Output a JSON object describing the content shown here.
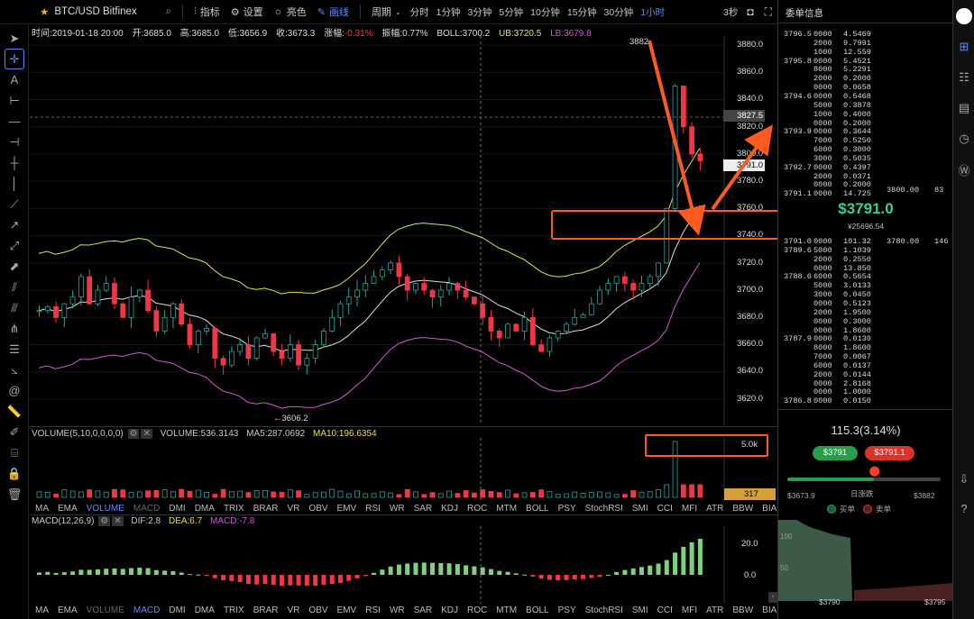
{
  "topbar": {
    "symbol": "BTC/USD Bitfinex",
    "indicators": "指标",
    "settings": "设置",
    "light": "亮色",
    "draw": "画线",
    "period_label": "周期",
    "periods": [
      "分时",
      "1分钟",
      "3分钟",
      "5分钟",
      "10分钟",
      "15分钟",
      "30分钟",
      "1小时"
    ],
    "active_period": "1小时",
    "refresh": "3秒"
  },
  "infobar": {
    "time": "时间:2019-01-18 20:00",
    "open": "开:3685.0",
    "high": "高:3685.0",
    "low": "低:3656.9",
    "close": "收:3673.3",
    "change_label": "涨幅:",
    "change": "-0.31%",
    "amp": "振幅:0.77%",
    "boll": "BOLL:3700.2",
    "ub": "UB:3720.5",
    "lb": "LB:3679.8"
  },
  "price_axis": {
    "ticks": [
      "3880.0",
      "3860.0",
      "3840.0",
      "3820.0",
      "3800.0",
      "3780.0",
      "3760.0",
      "3740.0",
      "3720.0",
      "3700.0",
      "3680.0",
      "3660.0",
      "3640.0",
      "3620.0"
    ],
    "marker_hi": "3827.5",
    "marker_last": "3791.0",
    "peak_label": "3882",
    "trough_label": "←3606.2"
  },
  "volume": {
    "header": "VOLUME(5,10,0,0,0,0)",
    "value": "VOLUME:536.3143",
    "ma5": "MA5:287.0692",
    "ma10": "MA10:196.6354",
    "tick": "5.0k",
    "last": "317"
  },
  "tabs1": [
    "MA",
    "EMA",
    "VOLUME",
    "MACD",
    "DMI",
    "DMA",
    "TRIX",
    "BRAR",
    "VR",
    "OBV",
    "EMV",
    "RSI",
    "WR",
    "SAR",
    "KDJ",
    "ROC",
    "MTM",
    "BOLL",
    "PSY",
    "StochRSI",
    "SMI",
    "CCI",
    "MFI",
    "ATR",
    "BBW",
    "BIAS"
  ],
  "tabs1_active": "VOLUME",
  "tabs2_active": "MACD",
  "macd": {
    "header": "MACD(12,26,9)",
    "dif": "DIF:2.8",
    "dea": "DEA:6.7",
    "macd": "MACD:-7.8",
    "ticks": [
      "20.0",
      "0.0"
    ]
  },
  "orderbook": {
    "title": "委单信息",
    "asks": [
      [
        "3796.5",
        "0000",
        "4.5469"
      ],
      [
        "",
        "2000",
        "9.7991"
      ],
      [
        "",
        "1000",
        "12.559"
      ],
      [
        "3795.8",
        "0000",
        "5.4521"
      ],
      [
        "",
        "8000",
        "5.2291"
      ],
      [
        "",
        "2000",
        "0.2000"
      ],
      [
        "",
        "0000",
        "0.0658"
      ],
      [
        "3794.6",
        "0000",
        "0.5468"
      ],
      [
        "",
        "5000",
        "0.3878"
      ],
      [
        "",
        "1000",
        "0.4000"
      ],
      [
        "",
        "0000",
        "0.2000"
      ],
      [
        "3793.9",
        "0000",
        "0.3644"
      ],
      [
        "",
        "7000",
        "0.5250"
      ],
      [
        "",
        "6000",
        "0.3000"
      ],
      [
        "",
        "3000",
        "0.5035"
      ],
      [
        "3792.7",
        "0000",
        "0.4397"
      ],
      [
        "",
        "2000",
        "0.0371"
      ],
      [
        "",
        "0000",
        "0.2000"
      ],
      [
        "3791.1",
        "0000",
        "14.725"
      ]
    ],
    "ask_band": "3800.00",
    "ask_band_n": "83",
    "price": "$3791.0",
    "price_cny": "¥25696.54",
    "bids": [
      [
        "3791.0",
        "0000",
        "101.32"
      ],
      [
        "3789.6",
        "5000",
        "1.1039"
      ],
      [
        "",
        "2000",
        "0.2550"
      ],
      [
        "",
        "0000",
        "13.850"
      ],
      [
        "3788.6",
        "6000",
        "0.5654"
      ],
      [
        "",
        "5000",
        "3.0133"
      ],
      [
        "",
        "3000",
        "0.0450"
      ],
      [
        "",
        "0000",
        "0.5123"
      ],
      [
        "",
        "2000",
        "1.9500"
      ],
      [
        "",
        "0000",
        "0.3000"
      ],
      [
        "",
        "0000",
        "1.8600"
      ],
      [
        "3787.9",
        "0000",
        "0.0130"
      ],
      [
        "",
        "8000",
        "1.8600"
      ],
      [
        "",
        "7000",
        "0.0067"
      ],
      [
        "",
        "6000",
        "0.0137"
      ],
      [
        "",
        "2000",
        "0.0144"
      ],
      [
        "",
        "0000",
        "2.8168"
      ],
      [
        "",
        "0000",
        "1.0000"
      ],
      [
        "3786.8",
        "0000",
        "0.0150"
      ]
    ],
    "bid_band": "3780.00",
    "bid_band_n": "146"
  },
  "summary": {
    "change": "115.3(3.14%)",
    "buy": "$3791",
    "sell": "$3791.1",
    "low": "$3673.9",
    "range_label": "日涨跌",
    "high": "$3882",
    "buy_label": "买单",
    "sell_label": "卖单",
    "depth_low": "$3790",
    "depth_high": "$3795",
    "depth_100": "100",
    "depth_50": "50"
  },
  "colors": {
    "up": "#26a69a",
    "down": "#f23645",
    "accent": "#5b8cff",
    "annot": "#ff5a1f"
  }
}
